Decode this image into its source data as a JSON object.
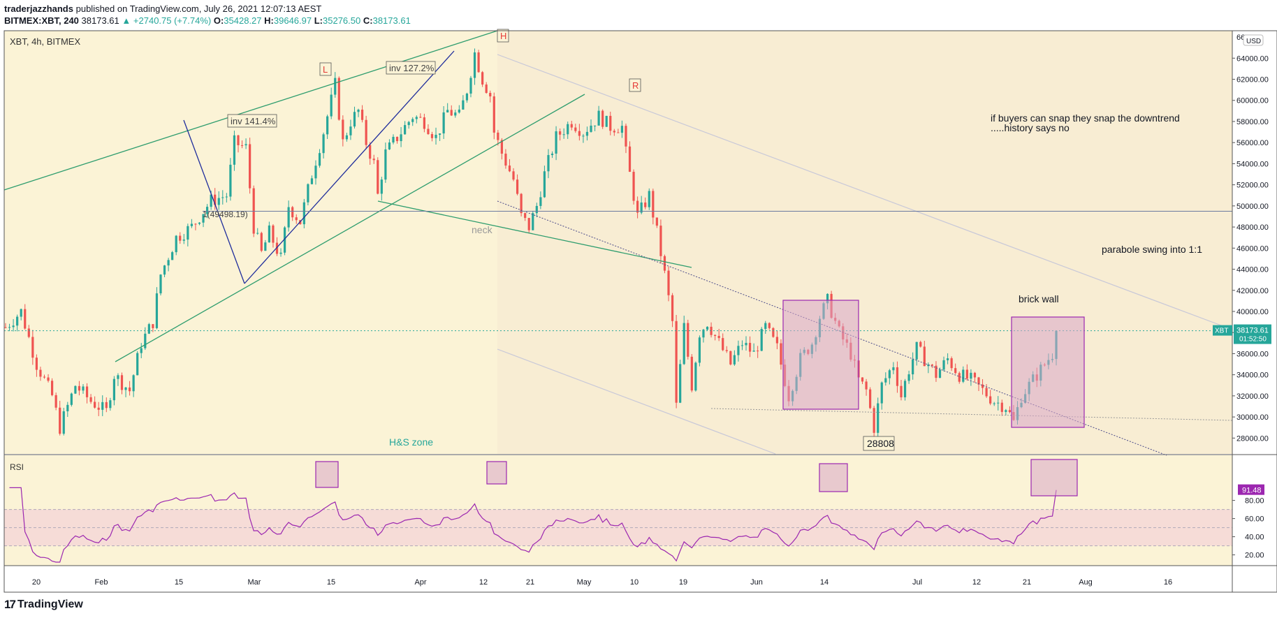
{
  "header": {
    "author": "traderjazzhands",
    "published": "published on TradingView.com, July 26, 2021 12:07:13 AEST",
    "symbol": "BITMEX:XBT, 240",
    "last": "38173.61",
    "change": "+2740.75 (+7.74%)",
    "o_label": "O:",
    "o": "35428.27",
    "h_label": "H:",
    "h": "39646.97",
    "l_label": "L:",
    "l": "35276.50",
    "c_label": "C:",
    "c": "38173.61"
  },
  "brand": {
    "name": "TradingView",
    "logo": "17"
  },
  "colors": {
    "background": "#fbf3d6",
    "shade": "#f7ead0",
    "up": "#26a69a",
    "down": "#ef5350",
    "rsi": "#9c27b0",
    "box_fill": "#d9a6c8",
    "box_stroke": "#9c27b0",
    "trend_green": "#2e9d6e",
    "trend_blue": "#1f2d9c",
    "label_red": "#e53935"
  },
  "chart_data": {
    "type": "candlestick",
    "title": "XBT, 4h, BITMEX",
    "currency": "USD",
    "x_ticks": [
      "20",
      "Feb",
      "15",
      "Mar",
      "15",
      "Apr",
      "12",
      "21",
      "May",
      "10",
      "19",
      "Jun",
      "14",
      "Jul",
      "12",
      "21",
      "Aug",
      "16"
    ],
    "y_ticks": [
      "64000.00",
      "62000.00",
      "60000.00",
      "58000.00",
      "56000.00",
      "54000.00",
      "52000.00",
      "50000.00",
      "48000.00",
      "46000.00",
      "44000.00",
      "42000.00",
      "40000.00",
      "38000.00",
      "36000.00",
      "34000.00",
      "32000.00",
      "30000.00",
      "28000.00"
    ],
    "y_tick_values": [
      64000,
      62000,
      60000,
      58000,
      56000,
      54000,
      52000,
      50000,
      48000,
      46000,
      44000,
      42000,
      40000,
      38000,
      36000,
      34000,
      32000,
      30000,
      28000
    ],
    "y_top_partial": "66",
    "ylim": [
      26500,
      66600
    ],
    "price_path": [
      [
        0,
        38500
      ],
      [
        4,
        40000
      ],
      [
        8,
        35000
      ],
      [
        12,
        32000
      ],
      [
        14,
        29000
      ],
      [
        18,
        33000
      ],
      [
        22,
        31500
      ],
      [
        26,
        30500
      ],
      [
        28,
        34000
      ],
      [
        32,
        32500
      ],
      [
        35,
        37000
      ],
      [
        38,
        39000
      ],
      [
        40,
        43500
      ],
      [
        44,
        47000
      ],
      [
        48,
        48000
      ],
      [
        53,
        50500
      ],
      [
        57,
        51000
      ],
      [
        59,
        56000
      ],
      [
        62,
        55500
      ],
      [
        64,
        48000
      ],
      [
        66,
        45500
      ],
      [
        68,
        47500
      ],
      [
        71,
        45000
      ],
      [
        73,
        50000
      ],
      [
        76,
        48500
      ],
      [
        79,
        53000
      ],
      [
        82,
        57000
      ],
      [
        85,
        61500
      ],
      [
        87,
        56000
      ],
      [
        89,
        58000
      ],
      [
        91,
        59000
      ],
      [
        93,
        56000
      ],
      [
        95,
        54000
      ],
      [
        96,
        51000
      ],
      [
        98,
        55000
      ],
      [
        102,
        57000
      ],
      [
        105,
        58500
      ],
      [
        108,
        58000
      ],
      [
        111,
        56500
      ],
      [
        114,
        59000
      ],
      [
        117,
        58500
      ],
      [
        119,
        61000
      ],
      [
        121,
        64500
      ],
      [
        123,
        62000
      ],
      [
        125,
        60500
      ],
      [
        126,
        57000
      ],
      [
        128,
        55000
      ],
      [
        131,
        52500
      ],
      [
        133,
        49000
      ],
      [
        135,
        48000
      ],
      [
        137,
        50000
      ],
      [
        139,
        53000
      ],
      [
        142,
        56500
      ],
      [
        146,
        58000
      ],
      [
        149,
        57000
      ],
      [
        153,
        58500
      ],
      [
        156,
        57500
      ],
      [
        159,
        57500
      ],
      [
        160,
        55000
      ],
      [
        163,
        49000
      ],
      [
        166,
        51000
      ],
      [
        168,
        47500
      ],
      [
        170,
        43500
      ],
      [
        172,
        39000
      ],
      [
        173,
        31000
      ],
      [
        175,
        38500
      ],
      [
        177,
        33000
      ],
      [
        179,
        38000
      ],
      [
        181,
        39000
      ],
      [
        184,
        37000
      ],
      [
        187,
        35000
      ],
      [
        190,
        37000
      ],
      [
        193,
        36000
      ],
      [
        196,
        38500
      ],
      [
        199,
        36500
      ],
      [
        202,
        32000
      ],
      [
        205,
        35500
      ],
      [
        208,
        37000
      ],
      [
        210,
        39500
      ],
      [
        212,
        41000
      ],
      [
        215,
        38000
      ],
      [
        218,
        36000
      ],
      [
        220,
        33500
      ],
      [
        222,
        32500
      ],
      [
        224,
        29000
      ],
      [
        226,
        33000
      ],
      [
        229,
        35000
      ],
      [
        231,
        32000
      ],
      [
        233,
        34500
      ],
      [
        235,
        36500
      ],
      [
        238,
        35000
      ],
      [
        240,
        34000
      ],
      [
        243,
        35500
      ],
      [
        246,
        34000
      ],
      [
        249,
        33500
      ],
      [
        252,
        32500
      ],
      [
        255,
        31500
      ],
      [
        258,
        31000
      ],
      [
        260,
        29500
      ],
      [
        262,
        32000
      ],
      [
        265,
        33500
      ],
      [
        268,
        35000
      ],
      [
        270,
        36000
      ],
      [
        271,
        38173
      ]
    ],
    "price_last": 38173.61,
    "price_last_label": "38173.61",
    "price_tag_symbol": "XBT",
    "price_tag_time": "01:52:50",
    "rsi": {
      "label": "RSI",
      "ticks": [
        "80.00",
        "60.00",
        "40.00",
        "20.00"
      ],
      "tick_values": [
        80,
        60,
        40,
        20
      ],
      "band": [
        30,
        70
      ],
      "last": 91.48,
      "last_label": "91.48"
    },
    "annotations": {
      "pattern_L": "L",
      "pattern_H": "H",
      "pattern_R": "R",
      "inv1": "inv 141.4%",
      "inv2": "inv 127.2%",
      "fib": "1(49498.19)",
      "fib_value": 49498.19,
      "neck": "neck",
      "hs_zone": "H&S zone",
      "low_label": "28808",
      "low_value": 28808,
      "note_line1": "if buyers can snap they snap the downtrend",
      "note_line2": ".....history says no",
      "parabole": "parabole swing into 1:1",
      "brick_wall": "brick wall"
    }
  }
}
